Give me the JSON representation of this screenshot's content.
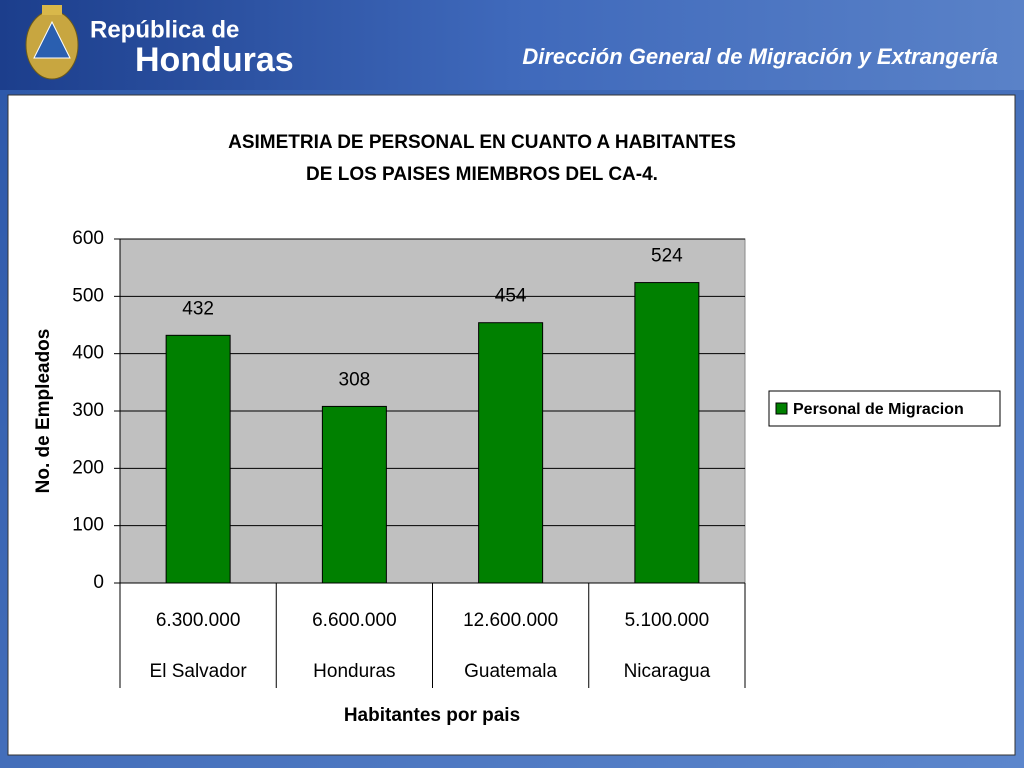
{
  "header": {
    "brand_top": "República de",
    "brand_main": "Honduras",
    "agency": "Dirección General de Migración y Extrangería"
  },
  "chart_data": {
    "type": "bar",
    "title": [
      "ASIMETRIA  DE PERSONAL EN CUANTO A HABITANTES",
      "DE LOS PAISES MIEMBROS DEL CA-4."
    ],
    "x_label": "Habitantes por pais",
    "y_label": "No. de Empleados",
    "populations": [
      "6.300.000",
      "6.600.000",
      "12.600.000",
      "5.100.000"
    ],
    "categories": [
      "El Salvador",
      "Honduras",
      "Guatemala",
      "Nicaragua"
    ],
    "series": [
      {
        "name": "Personal de Migracion",
        "color": "#008000",
        "values": [
          432,
          308,
          454,
          524
        ]
      }
    ],
    "ylim": [
      0,
      600
    ],
    "yticks": [
      0,
      100,
      200,
      300,
      400,
      500,
      600
    ],
    "grid": true,
    "legend": "right"
  }
}
